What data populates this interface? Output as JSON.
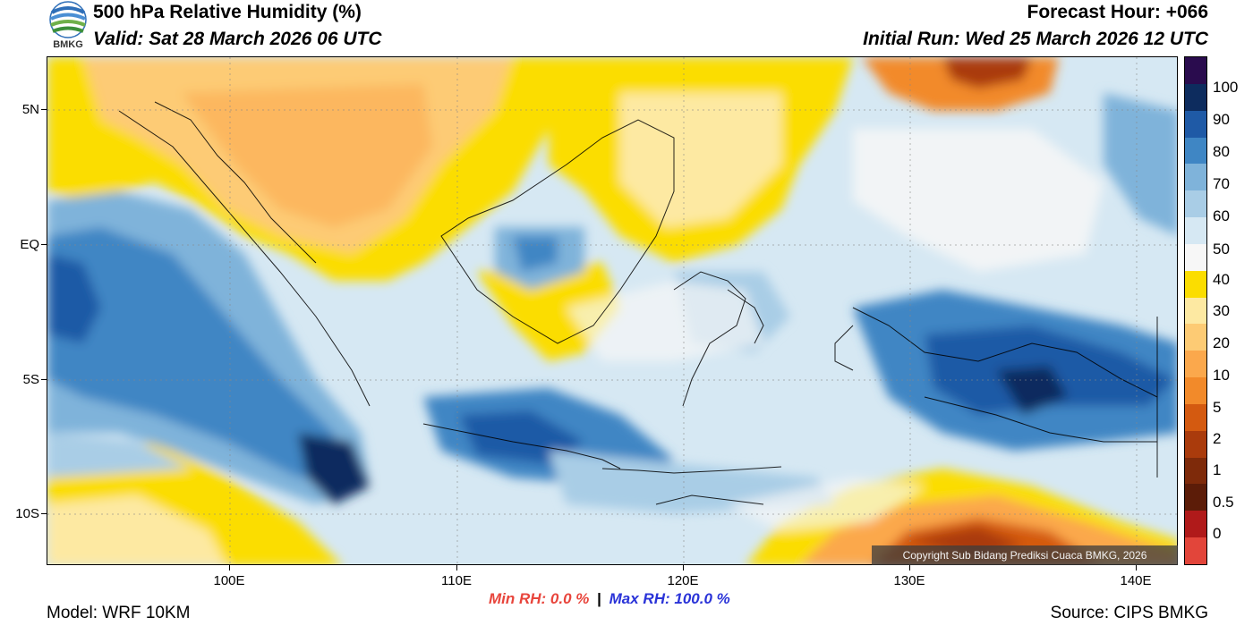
{
  "header": {
    "logo_text": "BMKG",
    "title": "500 hPa Relative Humidity (%)",
    "valid": "Valid: Sat 28 March 2026 06 UTC",
    "forecast_hour": "Forecast Hour: +066",
    "initial_run": "Initial Run: Wed 25 March 2026 12 UTC"
  },
  "map": {
    "lat_labels": [
      "5N",
      "EQ",
      "5S",
      "10S"
    ],
    "lon_labels": [
      "100E",
      "110E",
      "120E",
      "130E",
      "140E"
    ],
    "copyright": "Copyright Sub Bidang Prediksi Cuaca BMKG, 2026"
  },
  "colorbar": {
    "levels": [
      "100",
      "90",
      "80",
      "70",
      "60",
      "50",
      "40",
      "30",
      "20",
      "10",
      "5",
      "2",
      "1",
      "0.5",
      "0"
    ],
    "colors": [
      "#2a0c4e",
      "#0d2c5e",
      "#1f5aa6",
      "#3f86c4",
      "#7fb3da",
      "#a9cde6",
      "#d6e8f3",
      "#f7f7f7",
      "#fbdd00",
      "#fde9a2",
      "#fdcb74",
      "#fba84c",
      "#f28a2a",
      "#d45a10",
      "#aa3b0c",
      "#7e2a0a",
      "#5c1c08",
      "#b01a1a",
      "#e2453a"
    ]
  },
  "footer": {
    "min_rh": "Min RH:   0.0 %",
    "separator": "|",
    "max_rh": "Max RH: 100.0 %",
    "model": "Model: WRF 10KM",
    "source": "Source: CIPS BMKG"
  }
}
